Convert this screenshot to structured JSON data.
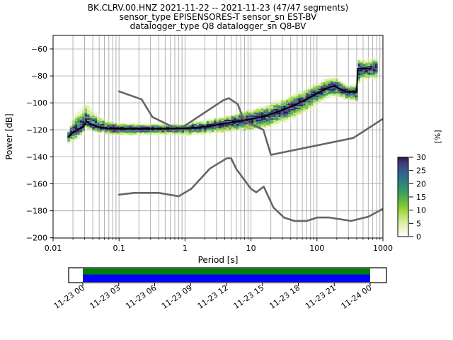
{
  "title": {
    "line1": "BK.CLRV.00.HNZ   2021-11-22 -- 2021-11-23  (47/47 segments)",
    "line2": "sensor_type EPISENSORES-T sensor_sn EST-BV",
    "line3": "datalogger_type Q8 datalogger_sn Q8-BV"
  },
  "axes": {
    "xlabel": "Period [s]",
    "ylabel": "Power [dB]",
    "x_tick_labels": [
      "0.01",
      "0.1",
      "1",
      "10",
      "100",
      "1000"
    ],
    "y_tick_labels": [
      "−60",
      "−80",
      "−100",
      "−120",
      "−140",
      "−160",
      "−180",
      "−200"
    ]
  },
  "colorbar": {
    "label": "[%]",
    "tick_labels": [
      "30",
      "25",
      "20",
      "15",
      "10",
      "5",
      "0"
    ],
    "tick_values": [
      30,
      25,
      20,
      15,
      10,
      5,
      0
    ],
    "min": 0,
    "max": 30
  },
  "timeline": {
    "tick_labels": [
      "11-23 00",
      "11-23 03",
      "11-23 06",
      "11-23 09",
      "11-23 12",
      "11-23 15",
      "11-23 18",
      "11-23 21",
      "11-24 00"
    ],
    "coverage_color_top": "#008000",
    "coverage_color_bottom": "#0000ff"
  },
  "chart_data": {
    "type": "heatmap",
    "title": "BK.CLRV.00.HNZ   2021-11-22 -- 2021-11-23  (47/47 segments)",
    "subtitle1": "sensor_type EPISENSORES-T sensor_sn EST-BV",
    "subtitle2": "datalogger_type Q8 datalogger_sn Q8-BV",
    "xlabel": "Period [s]",
    "ylabel": "Power [dB]",
    "x_scale": "log",
    "xlim": [
      0.01,
      1000
    ],
    "ylim": [
      -200,
      -50
    ],
    "x_ticks": [
      0.01,
      0.1,
      1,
      10,
      100,
      1000
    ],
    "y_ticks": [
      -60,
      -80,
      -100,
      -120,
      -140,
      -160,
      -180,
      -200
    ],
    "grid": true,
    "colorbar_label": "[%]",
    "colorbar_range": [
      0,
      30
    ],
    "mean_line": [
      [
        0.0172,
        -125
      ],
      [
        0.02,
        -122
      ],
      [
        0.024,
        -119.8
      ],
      [
        0.028,
        -118
      ],
      [
        0.032,
        -114
      ],
      [
        0.038,
        -116
      ],
      [
        0.048,
        -117.8
      ],
      [
        0.065,
        -118.9
      ],
      [
        0.09,
        -119.2
      ],
      [
        0.2,
        -119.3
      ],
      [
        0.6,
        -119.2
      ],
      [
        1.0,
        -118.9
      ],
      [
        1.6,
        -118.2
      ],
      [
        2.6,
        -116.8
      ],
      [
        4.0,
        -115.3
      ],
      [
        6.5,
        -113.6
      ],
      [
        10,
        -112
      ],
      [
        15,
        -110.2
      ],
      [
        22,
        -107.7
      ],
      [
        33,
        -104.6
      ],
      [
        50,
        -100.8
      ],
      [
        70,
        -97.3
      ],
      [
        95,
        -93.8
      ],
      [
        130,
        -90
      ],
      [
        165,
        -87.9
      ],
      [
        190,
        -87.8
      ],
      [
        240,
        -90.6
      ],
      [
        290,
        -91.7
      ],
      [
        400,
        -91.9
      ],
      [
        415,
        -74.6
      ],
      [
        630,
        -74.5
      ]
    ],
    "noise_models": {
      "nhnm": [
        [
          0.1,
          -91.5
        ],
        [
          0.22,
          -97.4
        ],
        [
          0.32,
          -110.5
        ],
        [
          0.8,
          -120.0
        ],
        [
          3.8,
          -98.1
        ],
        [
          4.6,
          -96.5
        ],
        [
          6.3,
          -101.0
        ],
        [
          7.9,
          -113.5
        ],
        [
          15.4,
          -120.0
        ],
        [
          20,
          -138.5
        ],
        [
          354.8,
          -126.0
        ],
        [
          1000,
          -111.8
        ]
      ],
      "nlnm": [
        [
          0.1,
          -168.0
        ],
        [
          0.17,
          -166.7
        ],
        [
          0.4,
          -166.7
        ],
        [
          0.8,
          -169.2
        ],
        [
          1.24,
          -163.7
        ],
        [
          2.4,
          -148.6
        ],
        [
          4.3,
          -141.1
        ],
        [
          5.0,
          -141.1
        ],
        [
          6.0,
          -149.0
        ],
        [
          10,
          -163.7
        ],
        [
          12,
          -166.3
        ],
        [
          15.6,
          -162.1
        ],
        [
          21.9,
          -177.5
        ],
        [
          31.6,
          -185.0
        ],
        [
          45,
          -187.5
        ],
        [
          70,
          -187.5
        ],
        [
          101,
          -185.0
        ],
        [
          154,
          -185.0
        ],
        [
          328,
          -187.5
        ],
        [
          600,
          -184.4
        ],
        [
          1000,
          -178.5
        ]
      ]
    },
    "histogram": {
      "period_range": [
        0.0172,
        800
      ],
      "octave_step": 0.125,
      "db_bin_width": 1,
      "spread": [
        {
          "p": 0.0172,
          "up": 5,
          "down": 5
        },
        {
          "p": 0.022,
          "up": 13,
          "down": 6
        },
        {
          "p": 0.03,
          "up": 13,
          "down": 5
        },
        {
          "p": 0.042,
          "up": 10,
          "down": 4.5
        },
        {
          "p": 0.06,
          "up": 6,
          "down": 4
        },
        {
          "p": 0.1,
          "up": 4,
          "down": 5
        },
        {
          "p": 0.3,
          "up": 3.5,
          "down": 4.5
        },
        {
          "p": 0.8,
          "up": 3.5,
          "down": 4.5
        },
        {
          "p": 2,
          "up": 4.5,
          "down": 5.5
        },
        {
          "p": 5,
          "up": 5.5,
          "down": 6.5
        },
        {
          "p": 10,
          "up": 7,
          "down": 8
        },
        {
          "p": 20,
          "up": 7.5,
          "down": 9
        },
        {
          "p": 50,
          "up": 8,
          "down": 9
        },
        {
          "p": 100,
          "up": 7,
          "down": 8
        },
        {
          "p": 200,
          "up": 6.5,
          "down": 7
        },
        {
          "p": 300,
          "up": 5,
          "down": 6
        },
        {
          "p": 390,
          "up": 5,
          "down": 6
        },
        {
          "p": 420,
          "up": 8,
          "down": 13
        },
        {
          "p": 460,
          "up": 6.5,
          "down": 7.5
        },
        {
          "p": 800,
          "up": 6.5,
          "down": 7.5
        }
      ],
      "secondary_band": {
        "p_min": 8,
        "p_max": 80,
        "offset_min": -7,
        "offset_max": -4
      }
    },
    "colormap_stops": [
      [
        0,
        "#ffffff"
      ],
      [
        2,
        "#f3f8dd"
      ],
      [
        4,
        "#e6f2ba"
      ],
      [
        6,
        "#d2ea92"
      ],
      [
        8,
        "#b9e065"
      ],
      [
        10,
        "#9cd53b"
      ],
      [
        12,
        "#7ec438"
      ],
      [
        14,
        "#5fb344"
      ],
      [
        16,
        "#45a354"
      ],
      [
        18,
        "#349468"
      ],
      [
        20,
        "#2b867d"
      ],
      [
        22,
        "#2d758c"
      ],
      [
        24,
        "#32638e"
      ],
      [
        26,
        "#384f88"
      ],
      [
        28,
        "#3e397c"
      ],
      [
        29,
        "#3b2562"
      ],
      [
        30,
        "#36114e"
      ]
    ],
    "colors": {
      "mean_line": "#000000",
      "noise_models": "#666666",
      "grid": "#b4b4b4",
      "coverage_green": "#008000",
      "coverage_blue": "#0000ff"
    }
  }
}
